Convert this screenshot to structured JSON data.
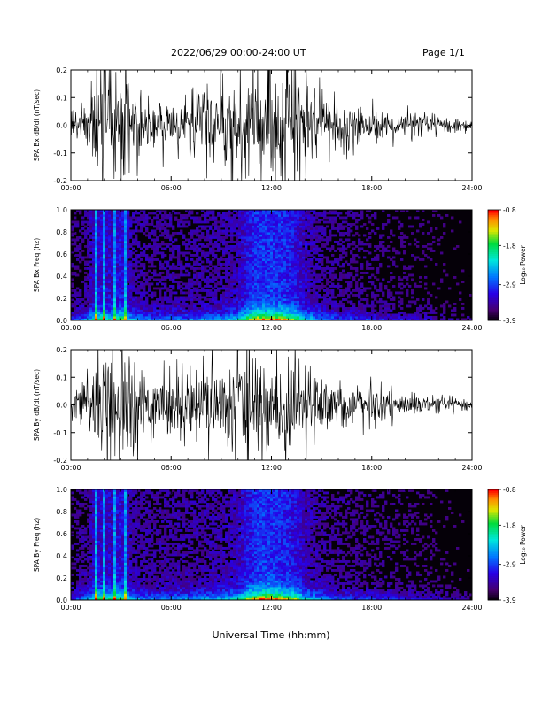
{
  "header": {
    "date_range": "2022/06/29  00:00-24:00 UT",
    "page": "Page 1/1"
  },
  "x_axis_title": "Universal Time (hh:mm)",
  "chart_data": [
    {
      "type": "line",
      "ylabel": "SPA Bx dB/dt (nT/sec)",
      "xlim": [
        "00:00",
        "24:00"
      ],
      "ylim": [
        -0.2,
        0.2
      ],
      "x_ticks": [
        "00:00",
        "06:00",
        "12:00",
        "18:00",
        "24:00"
      ],
      "y_ticks": [
        "-0.2",
        "-0.1",
        "0.0",
        "0.1",
        "0.2"
      ],
      "envelope": {
        "x_hours": [
          0,
          1,
          1.5,
          2,
          2.5,
          3,
          3.5,
          4,
          5,
          6,
          7,
          8,
          9,
          10,
          10.5,
          11,
          11.5,
          12,
          12.5,
          13,
          13.5,
          14,
          15,
          16,
          17,
          18,
          19,
          20,
          21,
          22,
          23,
          24
        ],
        "amplitude": [
          0.07,
          0.09,
          0.2,
          0.2,
          0.2,
          0.2,
          0.17,
          0.12,
          0.1,
          0.11,
          0.11,
          0.13,
          0.13,
          0.16,
          0.2,
          0.2,
          0.2,
          0.2,
          0.2,
          0.2,
          0.2,
          0.16,
          0.1,
          0.08,
          0.07,
          0.06,
          0.05,
          0.045,
          0.04,
          0.03,
          0.025,
          0.02
        ]
      }
    },
    {
      "type": "heatmap",
      "ylabel": "SPA Bx Freq (hz)",
      "xlim": [
        "00:00",
        "24:00"
      ],
      "ylim": [
        0.0,
        1.0
      ],
      "x_ticks": [
        "00:00",
        "06:00",
        "12:00",
        "18:00",
        "24:00"
      ],
      "y_ticks": [
        "0.0",
        "0.2",
        "0.4",
        "0.6",
        "0.8",
        "1.0"
      ],
      "colorbar": {
        "label": "Log₁₀ Power",
        "ticks": [
          "-0.8",
          "-1.8",
          "-2.9",
          "-3.9"
        ],
        "range": [
          -3.9,
          -0.8
        ]
      },
      "intensity": {
        "x_hours": [
          0,
          1,
          1.5,
          2,
          2.5,
          3,
          3.5,
          4,
          5,
          6,
          7,
          8,
          9,
          10,
          10.5,
          11,
          11.5,
          12,
          12.5,
          13,
          13.5,
          14,
          15,
          16,
          17,
          18,
          19,
          20,
          21,
          22,
          23,
          24
        ],
        "relative_power": [
          0.3,
          0.45,
          0.75,
          0.7,
          0.65,
          0.8,
          0.55,
          0.45,
          0.4,
          0.42,
          0.42,
          0.45,
          0.48,
          0.58,
          0.8,
          0.95,
          1.0,
          1.0,
          0.95,
          0.9,
          0.8,
          0.6,
          0.45,
          0.38,
          0.34,
          0.3,
          0.26,
          0.24,
          0.22,
          0.18,
          0.15,
          0.12
        ]
      }
    },
    {
      "type": "line",
      "ylabel": "SPA By dB/dt (nT/sec)",
      "xlim": [
        "00:00",
        "24:00"
      ],
      "ylim": [
        -0.2,
        0.2
      ],
      "x_ticks": [
        "00:00",
        "06:00",
        "12:00",
        "18:00",
        "24:00"
      ],
      "y_ticks": [
        "-0.2",
        "-0.1",
        "0.0",
        "0.1",
        "0.2"
      ],
      "envelope": {
        "x_hours": [
          0,
          1,
          1.5,
          2,
          2.5,
          3,
          3.5,
          4,
          5,
          6,
          7,
          8,
          9,
          10,
          10.5,
          11,
          11.5,
          12,
          12.5,
          13,
          13.5,
          14,
          15,
          16,
          17,
          18,
          19,
          20,
          21,
          22,
          23,
          24
        ],
        "amplitude": [
          0.06,
          0.09,
          0.2,
          0.2,
          0.2,
          0.2,
          0.18,
          0.14,
          0.12,
          0.13,
          0.13,
          0.14,
          0.15,
          0.17,
          0.2,
          0.2,
          0.2,
          0.2,
          0.2,
          0.2,
          0.2,
          0.15,
          0.1,
          0.08,
          0.07,
          0.06,
          0.05,
          0.045,
          0.04,
          0.03,
          0.025,
          0.02
        ]
      }
    },
    {
      "type": "heatmap",
      "ylabel": "SPA By Freq (hz)",
      "xlim": [
        "00:00",
        "24:00"
      ],
      "ylim": [
        0.0,
        1.0
      ],
      "x_ticks": [
        "00:00",
        "06:00",
        "12:00",
        "18:00",
        "24:00"
      ],
      "y_ticks": [
        "0.0",
        "0.2",
        "0.4",
        "0.6",
        "0.8",
        "1.0"
      ],
      "colorbar": {
        "label": "Log₁₀ Power",
        "ticks": [
          "-0.8",
          "-1.8",
          "-2.9",
          "-3.9"
        ],
        "range": [
          -3.9,
          -0.8
        ]
      },
      "intensity": {
        "x_hours": [
          0,
          1,
          1.5,
          2,
          2.5,
          3,
          3.5,
          4,
          5,
          6,
          7,
          8,
          9,
          10,
          10.5,
          11,
          11.5,
          12,
          12.5,
          13,
          13.5,
          14,
          15,
          16,
          17,
          18,
          19,
          20,
          21,
          22,
          23,
          24
        ],
        "relative_power": [
          0.3,
          0.45,
          0.75,
          0.7,
          0.65,
          0.8,
          0.55,
          0.45,
          0.42,
          0.44,
          0.45,
          0.48,
          0.5,
          0.6,
          0.8,
          0.95,
          1.0,
          1.0,
          0.95,
          0.88,
          0.78,
          0.6,
          0.45,
          0.38,
          0.34,
          0.32,
          0.28,
          0.26,
          0.24,
          0.2,
          0.16,
          0.12
        ]
      }
    }
  ]
}
